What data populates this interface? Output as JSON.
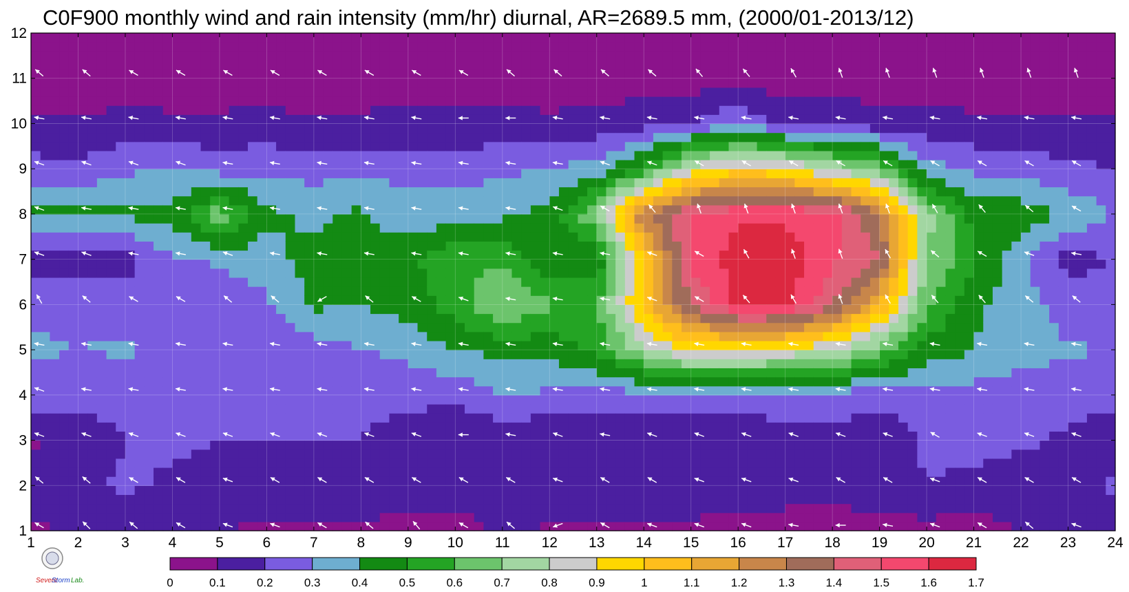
{
  "chart_data": {
    "type": "heatmap",
    "title": "C0F900 monthly wind and rain intensity (mm/hr) diurnal, AR=2689.5 mm, (2000/01-2013/12)",
    "xlabel": "",
    "ylabel": "",
    "xlim": [
      1,
      24
    ],
    "ylim": [
      1,
      12
    ],
    "x_ticks": [
      "1",
      "2",
      "3",
      "4",
      "5",
      "6",
      "7",
      "8",
      "9",
      "10",
      "11",
      "12",
      "13",
      "14",
      "15",
      "16",
      "17",
      "18",
      "19",
      "20",
      "21",
      "22",
      "23",
      "24"
    ],
    "y_ticks": [
      "1",
      "2",
      "3",
      "4",
      "5",
      "6",
      "7",
      "8",
      "9",
      "10",
      "11",
      "12"
    ],
    "grid": true,
    "overlay": "wind vectors (white arrows)",
    "colorbar": {
      "placement": "bottom",
      "levels": [
        "0",
        "0.1",
        "0.2",
        "0.3",
        "0.4",
        "0.5",
        "0.6",
        "0.7",
        "0.8",
        "0.9",
        "1",
        "1.1",
        "1.2",
        "1.3",
        "1.4",
        "1.5",
        "1.6",
        "1.7"
      ],
      "colors": [
        "#8b138b",
        "#4b1fa0",
        "#7a5ce0",
        "#6eaed0",
        "#138a13",
        "#24a424",
        "#6cc46c",
        "#a2d6a2",
        "#cccccc",
        "#ffd700",
        "#ffbe1c",
        "#e8a634",
        "#c8864a",
        "#a06c5a",
        "#e06078",
        "#f4486e",
        "#dc2840"
      ]
    },
    "rain_intensity_rows": [
      {
        "month": 1,
        "values": [
          0.09,
          0.1,
          0.13,
          0.12,
          0.1,
          0.08,
          0.08,
          0.07,
          0.06,
          0.07,
          0.12,
          0.09,
          0.08,
          0.07,
          0.07,
          0.06,
          0.08,
          0.08,
          0.07,
          0.06,
          0.06,
          0.1,
          0.12,
          0.12
        ]
      },
      {
        "month": 2,
        "values": [
          0.15,
          0.18,
          0.22,
          0.18,
          0.15,
          0.2,
          0.17,
          0.2,
          0.16,
          0.13,
          0.1,
          0.13,
          0.17,
          0.2,
          0.18,
          0.14,
          0.12,
          0.11,
          0.15,
          0.2,
          0.17,
          0.14,
          0.17,
          0.22
        ]
      },
      {
        "month": 3,
        "values": [
          0.09,
          0.12,
          0.2,
          0.22,
          0.2,
          0.2,
          0.2,
          0.2,
          0.13,
          0.12,
          0.12,
          0.1,
          0.1,
          0.11,
          0.09,
          0.12,
          0.15,
          0.18,
          0.1,
          0.22,
          0.24,
          0.22,
          0.18,
          0.1
        ]
      },
      {
        "month": 4,
        "values": [
          0.28,
          0.26,
          0.24,
          0.3,
          0.24,
          0.22,
          0.22,
          0.24,
          0.24,
          0.22,
          0.3,
          0.28,
          0.26,
          0.26,
          0.26,
          0.26,
          0.26,
          0.25,
          0.25,
          0.27,
          0.26,
          0.25,
          0.25,
          0.24
        ]
      },
      {
        "month": 5,
        "values": [
          0.31,
          0.3,
          0.31,
          0.29,
          0.27,
          0.24,
          0.25,
          0.3,
          0.32,
          0.4,
          0.42,
          0.44,
          0.52,
          0.76,
          0.94,
          0.9,
          0.88,
          0.8,
          0.64,
          0.46,
          0.4,
          0.34,
          0.31,
          0.3
        ]
      },
      {
        "month": 6,
        "values": [
          0.29,
          0.28,
          0.26,
          0.24,
          0.22,
          0.28,
          0.42,
          0.4,
          0.44,
          0.55,
          0.72,
          0.62,
          0.58,
          1.05,
          1.4,
          1.62,
          1.62,
          1.42,
          1.1,
          0.62,
          0.42,
          0.34,
          0.26,
          0.24
        ]
      },
      {
        "month": 7,
        "values": [
          0.14,
          0.14,
          0.16,
          0.28,
          0.32,
          0.36,
          0.44,
          0.4,
          0.48,
          0.58,
          0.58,
          0.42,
          0.42,
          1.0,
          1.52,
          1.66,
          1.66,
          1.52,
          1.4,
          0.7,
          0.52,
          0.32,
          0.16,
          0.2
        ]
      },
      {
        "month": 8,
        "values": [
          0.42,
          0.42,
          0.42,
          0.44,
          0.66,
          0.42,
          0.38,
          0.42,
          0.34,
          0.34,
          0.38,
          0.44,
          0.7,
          1.3,
          1.5,
          1.58,
          1.58,
          1.56,
          1.3,
          0.74,
          0.46,
          0.46,
          0.38,
          0.3
        ]
      },
      {
        "month": 9,
        "values": [
          0.24,
          0.22,
          0.28,
          0.3,
          0.26,
          0.28,
          0.26,
          0.28,
          0.26,
          0.26,
          0.28,
          0.3,
          0.34,
          0.54,
          0.84,
          0.96,
          0.92,
          0.78,
          0.66,
          0.34,
          0.28,
          0.26,
          0.22,
          0.2
        ]
      },
      {
        "month": 10,
        "values": [
          0.12,
          0.11,
          0.13,
          0.12,
          0.12,
          0.13,
          0.11,
          0.12,
          0.13,
          0.12,
          0.13,
          0.12,
          0.13,
          0.16,
          0.2,
          0.3,
          0.18,
          0.16,
          0.14,
          0.13,
          0.12,
          0.12,
          0.12,
          0.12
        ]
      },
      {
        "month": 11,
        "values": [
          0.05,
          0.05,
          0.05,
          0.05,
          0.05,
          0.05,
          0.05,
          0.05,
          0.05,
          0.06,
          0.05,
          0.05,
          0.05,
          0.05,
          0.05,
          0.05,
          0.05,
          0.05,
          0.05,
          0.05,
          0.05,
          0.05,
          0.05,
          0.05
        ]
      },
      {
        "month": 12,
        "values": [
          0.04,
          0.04,
          0.04,
          0.04,
          0.04,
          0.04,
          0.04,
          0.04,
          0.04,
          0.04,
          0.04,
          0.04,
          0.04,
          0.04,
          0.04,
          0.04,
          0.04,
          0.04,
          0.04,
          0.04,
          0.04,
          0.04,
          0.04,
          0.04
        ]
      }
    ],
    "wind_direction_deg": [
      {
        "month": 1,
        "values": [
          150,
          135,
          140,
          150,
          160,
          160,
          150,
          140,
          130,
          150,
          140,
          200,
          150,
          160,
          160,
          160,
          170,
          180,
          170,
          160,
          150,
          140,
          160,
          160
        ]
      },
      {
        "month": 2,
        "values": [
          140,
          140,
          150,
          150,
          160,
          150,
          150,
          150,
          150,
          150,
          150,
          160,
          150,
          150,
          160,
          160,
          160,
          150,
          150,
          160,
          150,
          150,
          150,
          160
        ]
      },
      {
        "month": 3,
        "values": [
          160,
          160,
          160,
          160,
          160,
          160,
          160,
          160,
          160,
          180,
          170,
          160,
          170,
          160,
          160,
          160,
          160,
          160,
          160,
          150,
          160,
          160,
          160,
          160
        ]
      },
      {
        "month": 4,
        "values": [
          160,
          170,
          170,
          170,
          170,
          170,
          170,
          170,
          170,
          170,
          170,
          170,
          170,
          170,
          170,
          170,
          170,
          170,
          170,
          170,
          170,
          170,
          170,
          170
        ]
      },
      {
        "month": 5,
        "values": [
          170,
          170,
          170,
          170,
          170,
          170,
          170,
          170,
          170,
          170,
          170,
          170,
          170,
          170,
          170,
          170,
          170,
          170,
          170,
          170,
          170,
          170,
          170,
          170
        ]
      },
      {
        "month": 6,
        "values": [
          120,
          140,
          150,
          150,
          140,
          140,
          210,
          140,
          150,
          160,
          170,
          170,
          170,
          160,
          150,
          130,
          120,
          110,
          120,
          130,
          130,
          140,
          140,
          140
        ]
      },
      {
        "month": 7,
        "values": [
          160,
          160,
          170,
          170,
          160,
          170,
          170,
          170,
          170,
          170,
          170,
          170,
          170,
          160,
          150,
          120,
          110,
          110,
          120,
          140,
          150,
          160,
          170,
          160
        ]
      },
      {
        "month": 8,
        "values": [
          160,
          170,
          170,
          170,
          170,
          170,
          170,
          170,
          170,
          170,
          170,
          160,
          150,
          130,
          110,
          110,
          110,
          110,
          110,
          120,
          130,
          140,
          150,
          160
        ]
      },
      {
        "month": 9,
        "values": [
          160,
          160,
          160,
          160,
          170,
          170,
          170,
          170,
          170,
          170,
          170,
          170,
          160,
          160,
          150,
          150,
          150,
          150,
          150,
          150,
          150,
          150,
          150,
          160
        ]
      },
      {
        "month": 10,
        "values": [
          170,
          170,
          170,
          170,
          170,
          170,
          170,
          170,
          170,
          180,
          180,
          170,
          170,
          170,
          170,
          170,
          170,
          170,
          170,
          170,
          170,
          170,
          170,
          170
        ]
      },
      {
        "month": 11,
        "values": [
          140,
          140,
          150,
          150,
          150,
          150,
          150,
          150,
          150,
          150,
          140,
          140,
          140,
          140,
          130,
          130,
          120,
          110,
          110,
          110,
          110,
          110,
          110,
          110
        ]
      },
      {
        "month": 12,
        "values": [
          170,
          170,
          170,
          170,
          170,
          170,
          170,
          170,
          170,
          170,
          170,
          170,
          170,
          170,
          170,
          170,
          170,
          170,
          170,
          170,
          170,
          170,
          170,
          170
        ]
      }
    ]
  },
  "logo": {
    "lines": [
      "Severe",
      "Storm",
      "Lab."
    ]
  }
}
